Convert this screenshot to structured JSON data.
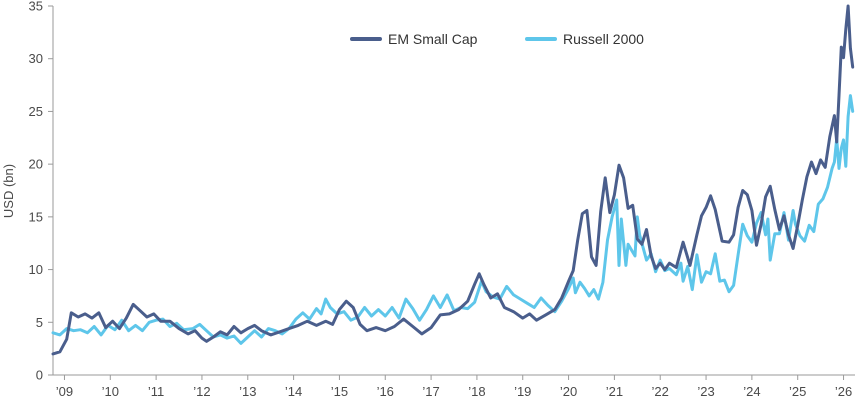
{
  "chart_data": {
    "type": "line",
    "ylabel": "USD (bn)",
    "ylim": [
      0,
      35
    ],
    "yticks": [
      0,
      5,
      10,
      15,
      20,
      25,
      30,
      35
    ],
    "xlim": [
      2008.75,
      2026.25
    ],
    "xticks": [
      {
        "label": "’09",
        "x": 2009
      },
      {
        "label": "’10",
        "x": 2010
      },
      {
        "label": "’11",
        "x": 2011
      },
      {
        "label": "’12",
        "x": 2012
      },
      {
        "label": "’13",
        "x": 2013
      },
      {
        "label": "’14",
        "x": 2014
      },
      {
        "label": "’15",
        "x": 2015
      },
      {
        "label": "’16",
        "x": 2016
      },
      {
        "label": "’17",
        "x": 2017
      },
      {
        "label": "’18",
        "x": 2018
      },
      {
        "label": "’19",
        "x": 2019
      },
      {
        "label": "’20",
        "x": 2020
      },
      {
        "label": "’21",
        "x": 2021
      },
      {
        "label": "’22",
        "x": 2022
      },
      {
        "label": "’23",
        "x": 2023
      },
      {
        "label": "’24",
        "x": 2024
      },
      {
        "label": "’25",
        "x": 2025
      },
      {
        "label": "’26",
        "x": 2026
      }
    ],
    "grid": false,
    "legend_position": "top-center",
    "series": [
      {
        "name": "EM Small Cap",
        "color": "#4a5e8c",
        "points": [
          [
            2008.75,
            2.0
          ],
          [
            2008.9,
            2.2
          ],
          [
            2009.05,
            3.4
          ],
          [
            2009.15,
            5.9
          ],
          [
            2009.3,
            5.5
          ],
          [
            2009.45,
            5.8
          ],
          [
            2009.6,
            5.4
          ],
          [
            2009.75,
            5.9
          ],
          [
            2009.9,
            4.5
          ],
          [
            2010.05,
            5.1
          ],
          [
            2010.2,
            4.4
          ],
          [
            2010.35,
            5.4
          ],
          [
            2010.5,
            6.7
          ],
          [
            2010.65,
            6.1
          ],
          [
            2010.8,
            5.5
          ],
          [
            2010.95,
            5.8
          ],
          [
            2011.1,
            5.1
          ],
          [
            2011.3,
            5.1
          ],
          [
            2011.5,
            4.4
          ],
          [
            2011.7,
            3.9
          ],
          [
            2011.85,
            4.2
          ],
          [
            2012.0,
            3.5
          ],
          [
            2012.1,
            3.2
          ],
          [
            2012.25,
            3.6
          ],
          [
            2012.4,
            4.1
          ],
          [
            2012.55,
            3.8
          ],
          [
            2012.7,
            4.6
          ],
          [
            2012.85,
            4.0
          ],
          [
            2013.0,
            4.4
          ],
          [
            2013.15,
            4.7
          ],
          [
            2013.3,
            4.2
          ],
          [
            2013.5,
            3.8
          ],
          [
            2013.7,
            4.1
          ],
          [
            2013.9,
            4.4
          ],
          [
            2014.1,
            4.7
          ],
          [
            2014.3,
            5.1
          ],
          [
            2014.5,
            4.7
          ],
          [
            2014.7,
            5.1
          ],
          [
            2014.85,
            4.8
          ],
          [
            2015.0,
            6.2
          ],
          [
            2015.15,
            7.0
          ],
          [
            2015.3,
            6.4
          ],
          [
            2015.45,
            4.8
          ],
          [
            2015.6,
            4.2
          ],
          [
            2015.8,
            4.5
          ],
          [
            2016.0,
            4.2
          ],
          [
            2016.2,
            4.6
          ],
          [
            2016.4,
            5.3
          ],
          [
            2016.6,
            4.6
          ],
          [
            2016.8,
            3.9
          ],
          [
            2017.0,
            4.5
          ],
          [
            2017.2,
            5.7
          ],
          [
            2017.4,
            5.8
          ],
          [
            2017.6,
            6.2
          ],
          [
            2017.8,
            7.0
          ],
          [
            2017.95,
            8.6
          ],
          [
            2018.05,
            9.6
          ],
          [
            2018.15,
            8.6
          ],
          [
            2018.3,
            7.3
          ],
          [
            2018.45,
            7.7
          ],
          [
            2018.6,
            6.4
          ],
          [
            2018.8,
            6.0
          ],
          [
            2019.0,
            5.4
          ],
          [
            2019.15,
            5.8
          ],
          [
            2019.3,
            5.2
          ],
          [
            2019.5,
            5.7
          ],
          [
            2019.7,
            6.2
          ],
          [
            2019.85,
            7.3
          ],
          [
            2020.0,
            8.9
          ],
          [
            2020.1,
            9.9
          ],
          [
            2020.2,
            12.8
          ],
          [
            2020.3,
            15.3
          ],
          [
            2020.4,
            15.6
          ],
          [
            2020.5,
            11.2
          ],
          [
            2020.6,
            10.4
          ],
          [
            2020.7,
            15.5
          ],
          [
            2020.8,
            18.7
          ],
          [
            2020.9,
            15.4
          ],
          [
            2021.0,
            17.1
          ],
          [
            2021.1,
            19.9
          ],
          [
            2021.2,
            18.7
          ],
          [
            2021.3,
            15.8
          ],
          [
            2021.4,
            16.1
          ],
          [
            2021.5,
            12.9
          ],
          [
            2021.6,
            12.4
          ],
          [
            2021.7,
            13.8
          ],
          [
            2021.8,
            11.3
          ],
          [
            2021.9,
            10.1
          ],
          [
            2022.0,
            10.6
          ],
          [
            2022.1,
            10.0
          ],
          [
            2022.2,
            10.6
          ],
          [
            2022.35,
            10.2
          ],
          [
            2022.5,
            12.6
          ],
          [
            2022.65,
            10.4
          ],
          [
            2022.8,
            13.3
          ],
          [
            2022.9,
            15.1
          ],
          [
            2023.0,
            15.9
          ],
          [
            2023.1,
            17.0
          ],
          [
            2023.2,
            15.7
          ],
          [
            2023.35,
            12.7
          ],
          [
            2023.5,
            12.6
          ],
          [
            2023.6,
            13.3
          ],
          [
            2023.7,
            15.9
          ],
          [
            2023.8,
            17.5
          ],
          [
            2023.9,
            17.1
          ],
          [
            2024.0,
            15.6
          ],
          [
            2024.1,
            12.3
          ],
          [
            2024.2,
            14.3
          ],
          [
            2024.3,
            16.9
          ],
          [
            2024.4,
            17.9
          ],
          [
            2024.5,
            15.7
          ],
          [
            2024.6,
            13.8
          ],
          [
            2024.7,
            15.1
          ],
          [
            2024.8,
            13.3
          ],
          [
            2024.9,
            12.0
          ],
          [
            2025.0,
            14.2
          ],
          [
            2025.1,
            16.6
          ],
          [
            2025.2,
            18.8
          ],
          [
            2025.3,
            20.2
          ],
          [
            2025.4,
            19.1
          ],
          [
            2025.5,
            20.4
          ],
          [
            2025.6,
            19.7
          ],
          [
            2025.7,
            22.6
          ],
          [
            2025.8,
            24.6
          ],
          [
            2025.85,
            22.1
          ],
          [
            2025.9,
            26.5
          ],
          [
            2025.95,
            31.1
          ],
          [
            2026.0,
            30.1
          ],
          [
            2026.05,
            32.8
          ],
          [
            2026.1,
            35.0
          ],
          [
            2026.15,
            31.0
          ],
          [
            2026.2,
            29.2
          ]
        ]
      },
      {
        "name": "Russell 2000",
        "color": "#5ec6ea",
        "points": [
          [
            2008.75,
            4.0
          ],
          [
            2008.9,
            3.8
          ],
          [
            2009.05,
            4.4
          ],
          [
            2009.2,
            4.2
          ],
          [
            2009.35,
            4.3
          ],
          [
            2009.5,
            4.0
          ],
          [
            2009.65,
            4.6
          ],
          [
            2009.8,
            3.8
          ],
          [
            2009.95,
            4.7
          ],
          [
            2010.1,
            4.3
          ],
          [
            2010.25,
            5.2
          ],
          [
            2010.4,
            4.2
          ],
          [
            2010.55,
            4.7
          ],
          [
            2010.7,
            4.2
          ],
          [
            2010.85,
            5.0
          ],
          [
            2011.0,
            5.2
          ],
          [
            2011.15,
            5.3
          ],
          [
            2011.3,
            4.6
          ],
          [
            2011.45,
            4.9
          ],
          [
            2011.6,
            4.3
          ],
          [
            2011.8,
            4.4
          ],
          [
            2011.95,
            4.8
          ],
          [
            2012.1,
            4.2
          ],
          [
            2012.25,
            3.6
          ],
          [
            2012.4,
            3.8
          ],
          [
            2012.55,
            3.5
          ],
          [
            2012.7,
            3.7
          ],
          [
            2012.85,
            3.0
          ],
          [
            2013.0,
            3.6
          ],
          [
            2013.15,
            4.2
          ],
          [
            2013.3,
            3.6
          ],
          [
            2013.45,
            4.4
          ],
          [
            2013.6,
            4.2
          ],
          [
            2013.75,
            3.9
          ],
          [
            2013.9,
            4.4
          ],
          [
            2014.05,
            5.3
          ],
          [
            2014.2,
            5.9
          ],
          [
            2014.35,
            5.3
          ],
          [
            2014.5,
            6.3
          ],
          [
            2014.6,
            5.8
          ],
          [
            2014.7,
            7.2
          ],
          [
            2014.8,
            6.4
          ],
          [
            2014.95,
            5.8
          ],
          [
            2015.1,
            6.0
          ],
          [
            2015.25,
            5.2
          ],
          [
            2015.4,
            5.5
          ],
          [
            2015.55,
            6.4
          ],
          [
            2015.7,
            5.6
          ],
          [
            2015.85,
            6.2
          ],
          [
            2016.0,
            5.6
          ],
          [
            2016.15,
            6.4
          ],
          [
            2016.3,
            5.4
          ],
          [
            2016.45,
            7.2
          ],
          [
            2016.6,
            6.3
          ],
          [
            2016.75,
            5.2
          ],
          [
            2016.9,
            6.2
          ],
          [
            2017.05,
            7.5
          ],
          [
            2017.2,
            6.4
          ],
          [
            2017.35,
            7.6
          ],
          [
            2017.5,
            6.1
          ],
          [
            2017.65,
            6.4
          ],
          [
            2017.8,
            6.3
          ],
          [
            2017.95,
            6.9
          ],
          [
            2018.1,
            8.9
          ],
          [
            2018.2,
            7.9
          ],
          [
            2018.35,
            7.4
          ],
          [
            2018.5,
            7.2
          ],
          [
            2018.65,
            8.4
          ],
          [
            2018.8,
            7.6
          ],
          [
            2018.95,
            7.2
          ],
          [
            2019.1,
            6.8
          ],
          [
            2019.25,
            6.4
          ],
          [
            2019.4,
            7.3
          ],
          [
            2019.55,
            6.6
          ],
          [
            2019.7,
            6.0
          ],
          [
            2019.85,
            7.0
          ],
          [
            2020.0,
            8.2
          ],
          [
            2020.1,
            9.2
          ],
          [
            2020.15,
            7.8
          ],
          [
            2020.25,
            8.8
          ],
          [
            2020.35,
            8.2
          ],
          [
            2020.45,
            7.5
          ],
          [
            2020.55,
            8.1
          ],
          [
            2020.65,
            7.2
          ],
          [
            2020.75,
            8.8
          ],
          [
            2020.85,
            12.8
          ],
          [
            2020.95,
            15.0
          ],
          [
            2021.05,
            16.6
          ],
          [
            2021.1,
            10.4
          ],
          [
            2021.15,
            14.8
          ],
          [
            2021.25,
            10.4
          ],
          [
            2021.3,
            12.4
          ],
          [
            2021.45,
            11.3
          ],
          [
            2021.5,
            15.0
          ],
          [
            2021.55,
            13.3
          ],
          [
            2021.7,
            10.9
          ],
          [
            2021.8,
            11.5
          ],
          [
            2021.9,
            9.8
          ],
          [
            2022.0,
            10.9
          ],
          [
            2022.1,
            9.9
          ],
          [
            2022.2,
            10.1
          ],
          [
            2022.35,
            9.5
          ],
          [
            2022.45,
            10.6
          ],
          [
            2022.5,
            8.9
          ],
          [
            2022.6,
            10.3
          ],
          [
            2022.7,
            8.1
          ],
          [
            2022.8,
            11.4
          ],
          [
            2022.9,
            8.8
          ],
          [
            2023.0,
            9.8
          ],
          [
            2023.1,
            9.6
          ],
          [
            2023.2,
            11.5
          ],
          [
            2023.3,
            8.9
          ],
          [
            2023.4,
            9.0
          ],
          [
            2023.5,
            7.9
          ],
          [
            2023.6,
            8.5
          ],
          [
            2023.7,
            11.4
          ],
          [
            2023.8,
            14.3
          ],
          [
            2023.9,
            13.2
          ],
          [
            2024.0,
            12.6
          ],
          [
            2024.1,
            14.4
          ],
          [
            2024.2,
            15.4
          ],
          [
            2024.3,
            13.3
          ],
          [
            2024.35,
            14.8
          ],
          [
            2024.4,
            10.9
          ],
          [
            2024.5,
            13.4
          ],
          [
            2024.6,
            13.4
          ],
          [
            2024.7,
            15.4
          ],
          [
            2024.8,
            12.8
          ],
          [
            2024.9,
            15.6
          ],
          [
            2024.95,
            14.3
          ],
          [
            2025.05,
            13.2
          ],
          [
            2025.15,
            12.7
          ],
          [
            2025.25,
            14.2
          ],
          [
            2025.35,
            13.6
          ],
          [
            2025.45,
            16.2
          ],
          [
            2025.55,
            16.7
          ],
          [
            2025.65,
            17.8
          ],
          [
            2025.75,
            19.6
          ],
          [
            2025.8,
            20.2
          ],
          [
            2025.85,
            22.4
          ],
          [
            2025.9,
            19.6
          ],
          [
            2025.95,
            21.5
          ],
          [
            2026.0,
            22.3
          ],
          [
            2026.05,
            19.8
          ],
          [
            2026.1,
            24.5
          ],
          [
            2026.15,
            26.5
          ],
          [
            2026.2,
            25.0
          ]
        ]
      }
    ]
  }
}
